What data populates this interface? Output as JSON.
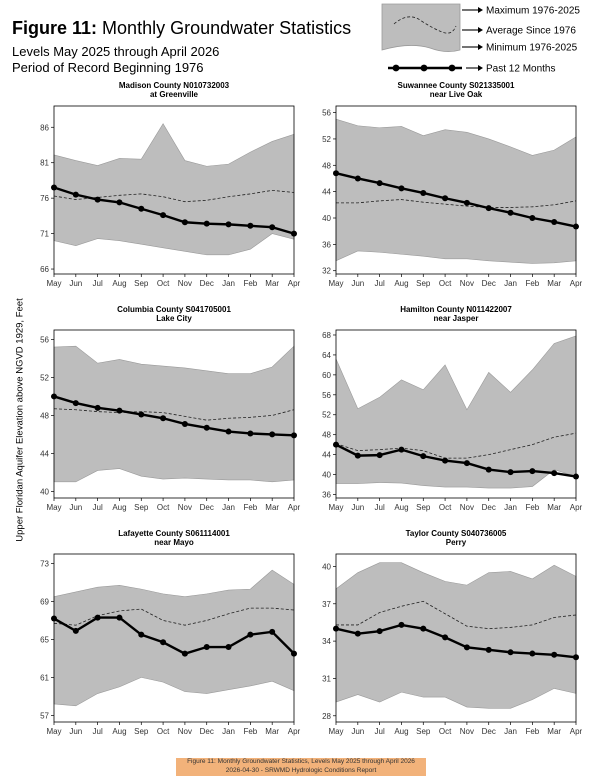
{
  "figure": {
    "label": "Figure 11:",
    "title": "Monthly Groundwater Statistics",
    "subtitle1": "Levels May 2025 through April 2026",
    "subtitle2": "Period of Record Beginning 1976"
  },
  "legend": {
    "maximum": "Maximum 1976-2025",
    "average": "Average Since 1976",
    "minimum": "Minimum 1976-2025",
    "past": "Past 12 Months"
  },
  "ylabel": "Upper Floridan Aquifer Elevation above NGVD 1929, Feet",
  "footer": {
    "line1": "Figure 11: Monthly Groundwater Statistics, Levels May 2025 through April 2026",
    "line2": "2026-04-30 - SRWMD Hydrologic Conditions Report"
  },
  "colors": {
    "band": "#bdbdbd",
    "band_stroke": "#9a9a9a",
    "line": "#000000"
  },
  "chart_data": [
    {
      "type": "line",
      "title": "Madison County N010732003",
      "subtitle": "at Greenville",
      "categories": [
        "May",
        "Jun",
        "Jul",
        "Aug",
        "Sep",
        "Oct",
        "Nov",
        "Dec",
        "Jan",
        "Feb",
        "Mar",
        "Apr"
      ],
      "yticks": [
        66,
        71,
        76,
        81,
        86
      ],
      "ylim": [
        65.3,
        89
      ],
      "series": [
        {
          "values": [
            82.1,
            81.3,
            80.6,
            81.6,
            81.5,
            86.5,
            81.3,
            80.5,
            80.8,
            82.5,
            84.0,
            85.0
          ]
        },
        {
          "values": [
            76.3,
            75.8,
            76.1,
            76.4,
            76.6,
            76.2,
            75.5,
            75.7,
            76.2,
            76.6,
            77.1,
            76.8
          ]
        },
        {
          "values": [
            70.0,
            69.3,
            70.3,
            70.0,
            69.5,
            69.0,
            68.5,
            68.0,
            68.0,
            68.8,
            71.0,
            70.2
          ]
        },
        {
          "values": [
            77.5,
            76.5,
            75.8,
            75.4,
            74.5,
            73.6,
            72.6,
            72.4,
            72.3,
            72.1,
            71.9,
            71.0
          ]
        }
      ]
    },
    {
      "type": "line",
      "title": "Suwannee County S021335001",
      "subtitle": "near Live Oak",
      "categories": [
        "May",
        "Jun",
        "Jul",
        "Aug",
        "Sep",
        "Oct",
        "Nov",
        "Dec",
        "Jan",
        "Feb",
        "Mar",
        "Apr"
      ],
      "yticks": [
        32,
        36,
        40,
        44,
        48,
        52,
        56
      ],
      "ylim": [
        31.5,
        57
      ],
      "series": [
        {
          "values": [
            55.0,
            54.0,
            53.7,
            53.9,
            52.5,
            53.4,
            53.0,
            52.0,
            50.8,
            49.5,
            50.3,
            52.3
          ]
        },
        {
          "values": [
            42.3,
            42.3,
            42.6,
            42.8,
            42.4,
            42.1,
            41.8,
            41.6,
            41.6,
            41.7,
            42.0,
            42.6
          ]
        },
        {
          "values": [
            33.5,
            35.0,
            34.8,
            34.5,
            34.2,
            33.8,
            33.8,
            33.5,
            33.3,
            33.1,
            33.2,
            33.5
          ]
        },
        {
          "values": [
            46.8,
            46.0,
            45.3,
            44.5,
            43.8,
            43.0,
            42.3,
            41.5,
            40.8,
            40.0,
            39.4,
            38.7
          ]
        }
      ]
    },
    {
      "type": "line",
      "title": "Columbia County S041705001",
      "subtitle": "Lake City",
      "categories": [
        "May",
        "Jun",
        "Jul",
        "Aug",
        "Sep",
        "Oct",
        "Nov",
        "Dec",
        "Jan",
        "Feb",
        "Mar",
        "Apr"
      ],
      "yticks": [
        40,
        44,
        48,
        52,
        56
      ],
      "ylim": [
        39.3,
        57
      ],
      "series": [
        {
          "values": [
            55.2,
            55.3,
            53.5,
            53.9,
            53.4,
            53.2,
            53.0,
            52.7,
            52.4,
            52.4,
            53.1,
            55.3
          ]
        },
        {
          "values": [
            48.7,
            48.6,
            48.4,
            48.3,
            48.4,
            48.3,
            47.9,
            47.5,
            47.7,
            47.8,
            48.0,
            48.6
          ]
        },
        {
          "values": [
            41.0,
            41.0,
            42.2,
            42.4,
            41.6,
            41.3,
            41.4,
            41.3,
            41.2,
            41.2,
            41.0,
            41.2
          ]
        },
        {
          "values": [
            50.0,
            49.3,
            48.8,
            48.5,
            48.1,
            47.7,
            47.1,
            46.7,
            46.3,
            46.1,
            46.0,
            45.9
          ]
        }
      ]
    },
    {
      "type": "line",
      "title": "Hamilton County N011422007",
      "subtitle": "near Jasper",
      "categories": [
        "May",
        "Jun",
        "Jul",
        "Aug",
        "Sep",
        "Oct",
        "Nov",
        "Dec",
        "Jan",
        "Feb",
        "Mar",
        "Apr"
      ],
      "yticks": [
        36,
        40,
        44,
        48,
        52,
        56,
        60,
        64,
        68
      ],
      "ylim": [
        35.3,
        69
      ],
      "series": [
        {
          "values": [
            63.2,
            53.2,
            55.5,
            59.0,
            57.0,
            62.0,
            53.0,
            60.5,
            56.5,
            61.0,
            66.3,
            67.8
          ]
        },
        {
          "values": [
            46.2,
            44.8,
            45.0,
            45.3,
            44.8,
            43.3,
            43.3,
            44.0,
            45.0,
            46.0,
            47.5,
            48.3
          ]
        },
        {
          "values": [
            38.2,
            38.2,
            38.4,
            38.3,
            37.8,
            37.5,
            37.5,
            37.3,
            37.3,
            37.6,
            41.0,
            39.6
          ]
        },
        {
          "values": [
            46.0,
            43.8,
            43.9,
            45.0,
            43.7,
            42.8,
            42.3,
            41.0,
            40.5,
            40.7,
            40.3,
            39.6
          ]
        }
      ]
    },
    {
      "type": "line",
      "title": "Lafayette County S061114001",
      "subtitle": "near Mayo",
      "categories": [
        "May",
        "Jun",
        "Jul",
        "Aug",
        "Sep",
        "Oct",
        "Nov",
        "Dec",
        "Jan",
        "Feb",
        "Mar",
        "Apr"
      ],
      "yticks": [
        57,
        61,
        65,
        69,
        73
      ],
      "ylim": [
        56.3,
        74
      ],
      "series": [
        {
          "values": [
            69.5,
            70.0,
            70.5,
            70.7,
            70.3,
            69.8,
            69.5,
            69.8,
            70.2,
            70.3,
            72.3,
            70.8
          ]
        },
        {
          "values": [
            66.7,
            66.5,
            67.5,
            68.0,
            68.2,
            67.0,
            66.5,
            67.0,
            67.7,
            68.3,
            68.3,
            68.1
          ]
        },
        {
          "values": [
            58.2,
            58.0,
            59.3,
            60.0,
            61.0,
            60.5,
            59.5,
            59.3,
            59.7,
            60.1,
            60.6,
            59.6
          ]
        },
        {
          "values": [
            67.2,
            65.9,
            67.3,
            67.3,
            65.5,
            64.7,
            63.5,
            64.2,
            64.2,
            65.5,
            65.8,
            63.5
          ]
        }
      ]
    },
    {
      "type": "line",
      "title": "Taylor County S040736005",
      "subtitle": "Perry",
      "categories": [
        "May",
        "Jun",
        "Jul",
        "Aug",
        "Sep",
        "Oct",
        "Nov",
        "Dec",
        "Jan",
        "Feb",
        "Mar",
        "Apr"
      ],
      "yticks": [
        28,
        31,
        34,
        37,
        40
      ],
      "ylim": [
        27.5,
        41
      ],
      "series": [
        {
          "values": [
            38.2,
            39.5,
            40.3,
            40.3,
            39.5,
            38.8,
            38.5,
            39.5,
            39.6,
            39.0,
            40.1,
            39.2
          ]
        },
        {
          "values": [
            35.3,
            35.3,
            36.3,
            36.8,
            37.2,
            36.2,
            35.2,
            35.0,
            35.1,
            35.3,
            35.9,
            36.1
          ]
        },
        {
          "values": [
            29.1,
            29.7,
            29.1,
            29.9,
            29.5,
            29.5,
            28.7,
            28.6,
            28.6,
            29.3,
            30.2,
            29.8
          ]
        },
        {
          "values": [
            35.0,
            34.6,
            34.8,
            35.3,
            35.0,
            34.3,
            33.5,
            33.3,
            33.1,
            33.0,
            32.9,
            32.7
          ]
        }
      ]
    }
  ]
}
